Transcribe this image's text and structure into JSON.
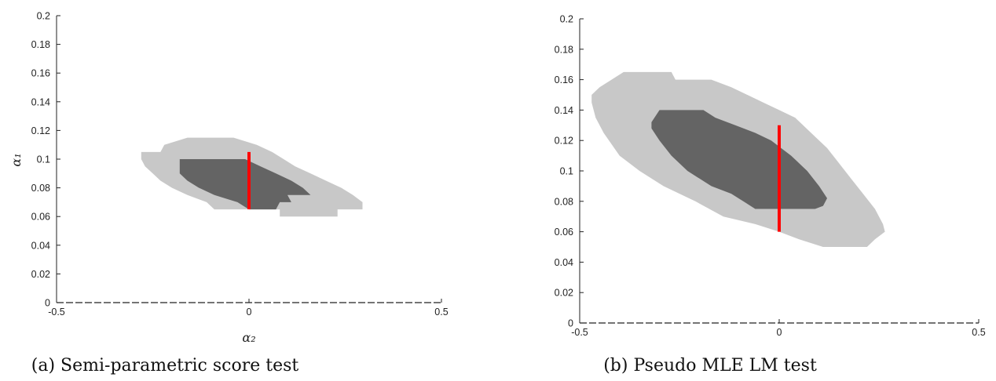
{
  "colors": {
    "outer_region": "#c8c8c8",
    "inner_region": "#646464",
    "restriction_line": "#ff0000",
    "axis": "#222222"
  },
  "chart_data": [
    {
      "type": "area",
      "caption": "(a) Semi-parametric score test",
      "xlabel": "α₂",
      "ylabel": "α₁",
      "xlim": [
        -0.5,
        0.5
      ],
      "ylim": [
        0,
        0.2
      ],
      "x_ticks": [
        -0.5,
        0,
        0.5
      ],
      "x_tick_labels": [
        "-0.5",
        "0",
        "0.5"
      ],
      "y_ticks": [
        0,
        0.02,
        0.04,
        0.06,
        0.08,
        0.1,
        0.12,
        0.14,
        0.16,
        0.18,
        0.2
      ],
      "y_tick_labels": [
        "0",
        "0.02",
        "0.04",
        "0.06",
        "0.08",
        "0.1",
        "0.12",
        "0.14",
        "0.16",
        "0.18",
        "0.2"
      ],
      "grid": false,
      "series": [
        {
          "role": "outer-confidence-region",
          "polygon": [
            [
              -0.28,
              0.105
            ],
            [
              -0.23,
              0.105
            ],
            [
              -0.22,
              0.11
            ],
            [
              -0.16,
              0.115
            ],
            [
              -0.04,
              0.115
            ],
            [
              0.02,
              0.11
            ],
            [
              0.06,
              0.105
            ],
            [
              0.09,
              0.1
            ],
            [
              0.12,
              0.095
            ],
            [
              0.16,
              0.09
            ],
            [
              0.2,
              0.085
            ],
            [
              0.24,
              0.08
            ],
            [
              0.27,
              0.075
            ],
            [
              0.295,
              0.07
            ],
            [
              0.295,
              0.065
            ],
            [
              0.23,
              0.065
            ],
            [
              0.23,
              0.06
            ],
            [
              0.08,
              0.06
            ],
            [
              0.08,
              0.065
            ],
            [
              -0.09,
              0.065
            ],
            [
              -0.11,
              0.07
            ],
            [
              -0.16,
              0.075
            ],
            [
              -0.2,
              0.08
            ],
            [
              -0.23,
              0.085
            ],
            [
              -0.25,
              0.09
            ],
            [
              -0.27,
              0.095
            ],
            [
              -0.28,
              0.1
            ]
          ]
        },
        {
          "role": "inner-confidence-region",
          "polygon": [
            [
              -0.18,
              0.1
            ],
            [
              -0.01,
              0.1
            ],
            [
              0.03,
              0.095
            ],
            [
              0.07,
              0.09
            ],
            [
              0.11,
              0.085
            ],
            [
              0.14,
              0.08
            ],
            [
              0.16,
              0.075
            ],
            [
              0.1,
              0.075
            ],
            [
              0.11,
              0.07
            ],
            [
              0.08,
              0.07
            ],
            [
              0.07,
              0.065
            ],
            [
              0.0,
              0.065
            ],
            [
              -0.03,
              0.07
            ],
            [
              -0.09,
              0.075
            ],
            [
              -0.13,
              0.08
            ],
            [
              -0.16,
              0.085
            ],
            [
              -0.18,
              0.09
            ],
            [
              -0.18,
              0.095
            ]
          ]
        }
      ],
      "restriction_segment": {
        "x": 0,
        "y_from": 0.065,
        "y_to": 0.105
      }
    },
    {
      "type": "area",
      "caption": "(b) Pseudo MLE LM test",
      "xlabel": "",
      "ylabel": "",
      "xlim": [
        -0.5,
        0.5
      ],
      "ylim": [
        0,
        0.2
      ],
      "x_ticks": [
        -0.5,
        0,
        0.5
      ],
      "x_tick_labels": [
        "-0.5",
        "0",
        "0.5"
      ],
      "y_ticks": [
        0,
        0.02,
        0.04,
        0.06,
        0.08,
        0.1,
        0.12,
        0.14,
        0.16,
        0.18,
        0.2
      ],
      "y_tick_labels": [
        "0",
        "0.02",
        "0.04",
        "0.06",
        "0.08",
        "0.1",
        "0.12",
        "0.14",
        "0.16",
        "0.18",
        "0.2"
      ],
      "grid": false,
      "series": [
        {
          "role": "outer-confidence-region",
          "polygon": [
            [
              -0.47,
              0.15
            ],
            [
              -0.45,
              0.155
            ],
            [
              -0.42,
              0.16
            ],
            [
              -0.39,
              0.165
            ],
            [
              -0.27,
              0.165
            ],
            [
              -0.26,
              0.16
            ],
            [
              -0.17,
              0.16
            ],
            [
              -0.12,
              0.155
            ],
            [
              -0.08,
              0.15
            ],
            [
              -0.04,
              0.145
            ],
            [
              0.0,
              0.14
            ],
            [
              0.04,
              0.135
            ],
            [
              0.08,
              0.125
            ],
            [
              0.12,
              0.115
            ],
            [
              0.15,
              0.105
            ],
            [
              0.18,
              0.095
            ],
            [
              0.21,
              0.085
            ],
            [
              0.24,
              0.075
            ],
            [
              0.26,
              0.065
            ],
            [
              0.265,
              0.06
            ],
            [
              0.24,
              0.055
            ],
            [
              0.22,
              0.05
            ],
            [
              0.11,
              0.05
            ],
            [
              0.05,
              0.055
            ],
            [
              0.0,
              0.06
            ],
            [
              -0.06,
              0.065
            ],
            [
              -0.14,
              0.07
            ],
            [
              -0.21,
              0.08
            ],
            [
              -0.29,
              0.09
            ],
            [
              -0.35,
              0.1
            ],
            [
              -0.4,
              0.11
            ],
            [
              -0.44,
              0.125
            ],
            [
              -0.46,
              0.135
            ],
            [
              -0.47,
              0.145
            ]
          ]
        },
        {
          "role": "inner-confidence-region",
          "polygon": [
            [
              -0.32,
              0.132
            ],
            [
              -0.3,
              0.14
            ],
            [
              -0.19,
              0.14
            ],
            [
              -0.16,
              0.135
            ],
            [
              -0.11,
              0.13
            ],
            [
              -0.06,
              0.125
            ],
            [
              -0.02,
              0.12
            ],
            [
              0.03,
              0.11
            ],
            [
              0.07,
              0.1
            ],
            [
              0.1,
              0.09
            ],
            [
              0.12,
              0.082
            ],
            [
              0.11,
              0.077
            ],
            [
              0.09,
              0.075
            ],
            [
              -0.06,
              0.075
            ],
            [
              -0.09,
              0.08
            ],
            [
              -0.12,
              0.085
            ],
            [
              -0.17,
              0.09
            ],
            [
              -0.23,
              0.1
            ],
            [
              -0.27,
              0.11
            ],
            [
              -0.3,
              0.12
            ],
            [
              -0.32,
              0.128
            ]
          ]
        }
      ],
      "restriction_segment": {
        "x": 0,
        "y_from": 0.06,
        "y_to": 0.13
      }
    }
  ]
}
